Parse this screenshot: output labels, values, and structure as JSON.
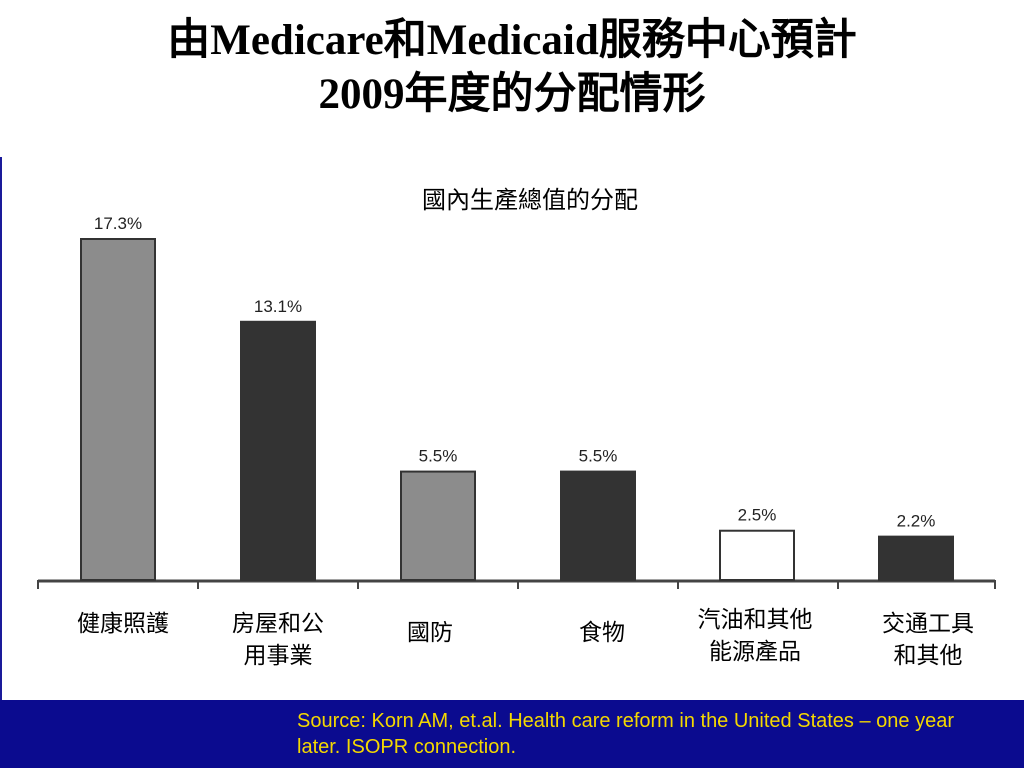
{
  "slide": {
    "title_line1": "由Medicare和Medicaid服務中心預計",
    "title_line2": "2009年度的分配情形",
    "source": "Source: Korn AM, et.al. Health care reform in the United States – one year later. ISOPR connection."
  },
  "colors": {
    "footer": "#0b0b8f",
    "source_text": "#f4d800",
    "left_rule": "#1a1a9a"
  },
  "chart_data": {
    "type": "bar",
    "title": "國內生產總值的分配",
    "categories": [
      "健康照護",
      "房屋和公\n用事業",
      "國防",
      "食物",
      "汽油和其他\n能源產品",
      "交通工具\n和其他"
    ],
    "values": [
      17.3,
      13.1,
      5.5,
      5.5,
      2.5,
      2.2
    ],
    "data_labels": [
      "17.3%",
      "13.1%",
      "5.5%",
      "5.5%",
      "2.5%",
      "2.2%"
    ],
    "bar_colors": [
      "#8c8c8c",
      "#333333",
      "#8c8c8c",
      "#333333",
      "#ffffff",
      "#333333"
    ],
    "xlabel": "",
    "ylabel": "",
    "ylim": [
      0,
      19
    ],
    "grid": false,
    "legend": "none"
  }
}
